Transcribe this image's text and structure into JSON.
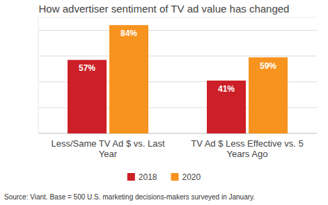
{
  "chart_data": {
    "type": "bar",
    "title": "How advertiser sentiment of TV ad value has changed",
    "categories": [
      "Less/Same TV Ad $ vs. Last Year",
      "TV Ad $ Less Effective vs. 5 Years Ago"
    ],
    "series": [
      {
        "name": "2018",
        "color": "#cc1f27",
        "values": [
          57,
          41
        ],
        "value_labels": [
          "57%",
          "41%"
        ]
      },
      {
        "name": "2020",
        "color": "#f7931e",
        "values": [
          84,
          59
        ],
        "value_labels": [
          "84%",
          "59%"
        ]
      }
    ],
    "ylim": [
      0,
      90
    ],
    "yticks": [
      0,
      20,
      40,
      60,
      80
    ],
    "grid": true,
    "tick_labels": false,
    "data_labels": true,
    "legend": "bottom",
    "source": "Source: Viant. Base = 500 U.S. marketing decisions-makers surveyed in January."
  }
}
